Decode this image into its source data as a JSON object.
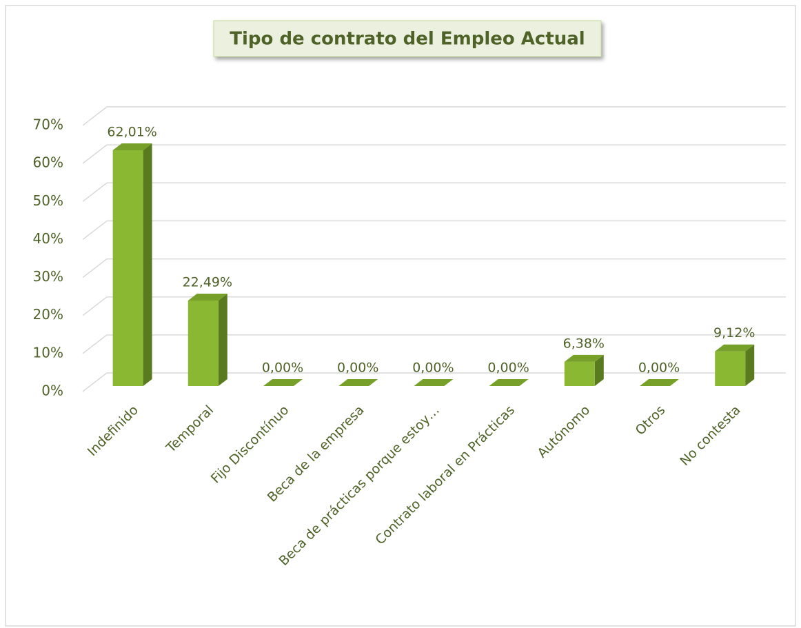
{
  "chart_data": {
    "type": "bar3d",
    "title": "Tipo de contrato del Empleo Actual",
    "categories": [
      "Indefinido",
      "Temporal",
      "Fijo Discontínuo",
      "Beca de la empresa",
      "Beca de prácticas porque estoy…",
      "Contrato laboral en Prácticas",
      "Autónomo",
      "Otros",
      "No contesta"
    ],
    "values": [
      62.01,
      22.49,
      0,
      0,
      0,
      0,
      6.38,
      0,
      9.12
    ],
    "value_labels": [
      "62,01%",
      "22,49%",
      "0,00%",
      "0,00%",
      "0,00%",
      "0,00%",
      "6,38%",
      "0,00%",
      "9,12%"
    ],
    "color": "#8ab833",
    "ylim": [
      0,
      70
    ],
    "yticks": [
      {
        "value": 0,
        "label": "0%"
      },
      {
        "value": 10,
        "label": "10%"
      },
      {
        "value": 20,
        "label": "20%"
      },
      {
        "value": 30,
        "label": "30%"
      },
      {
        "value": 40,
        "label": "40%"
      },
      {
        "value": 50,
        "label": "50%"
      },
      {
        "value": 60,
        "label": "60%"
      },
      {
        "value": 70,
        "label": "70%"
      }
    ],
    "grid": true
  }
}
